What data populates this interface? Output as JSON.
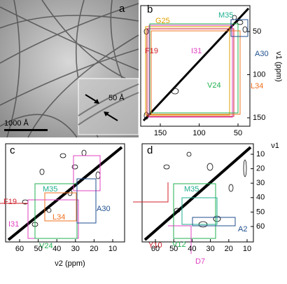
{
  "panels": [
    {
      "label": "a",
      "scale_bar": "1000 Å",
      "inset_label": "50 Å"
    },
    {
      "label": "b",
      "x_ticks": [
        150,
        100,
        50
      ],
      "y_ticks": [
        50,
        100,
        150
      ],
      "y_label": "ν1 (ppm)",
      "annotations": [
        "G25",
        "M35",
        "F19",
        "I31",
        "A30",
        "V24",
        "L34"
      ]
    },
    {
      "label": "c",
      "x_ticks": [
        60,
        50,
        40,
        30,
        20,
        10
      ],
      "x_label": "ν2 (ppm)",
      "annotations": [
        "F19",
        "M35",
        "I31",
        "L34",
        "A30",
        "V24"
      ]
    },
    {
      "label": "d",
      "x_ticks": [
        60,
        50,
        40,
        30,
        20,
        10
      ],
      "y_ticks": [
        10,
        20,
        30,
        40,
        50,
        60
      ],
      "y_label": "ν1",
      "annotations": [
        "M35",
        "Y10",
        "A2",
        "V12",
        "D7"
      ]
    }
  ]
}
